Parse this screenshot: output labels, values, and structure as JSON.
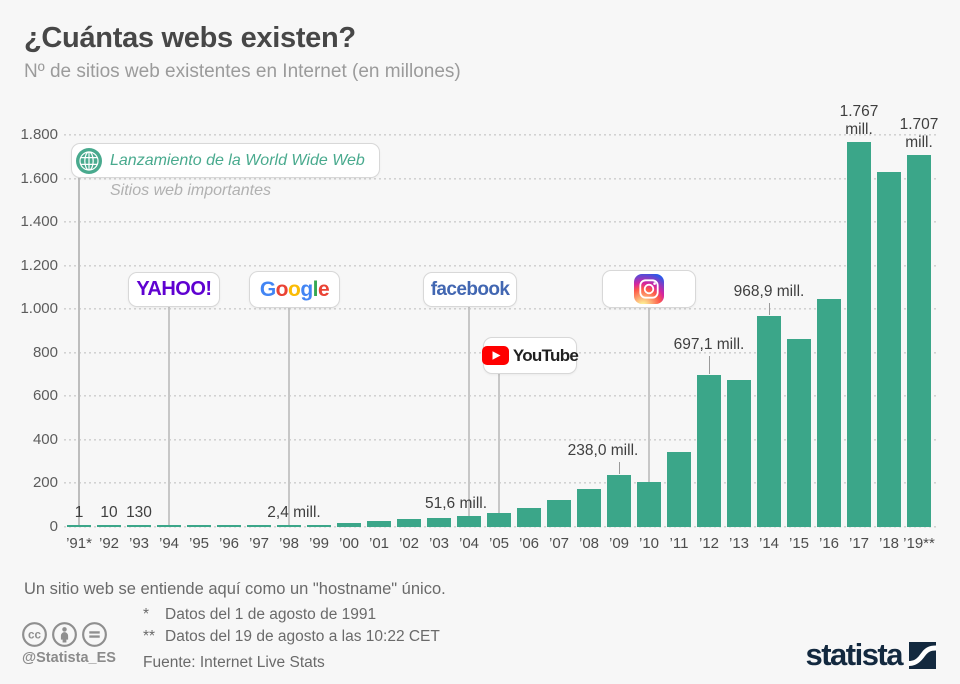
{
  "colors": {
    "background": "#f7f7f7",
    "bar": "#3ba689",
    "accent_teal": "#49aa8e",
    "yahoo_purple": "#5f01d1",
    "facebook_blue": "#4267b2",
    "youtube_red": "#ff0000",
    "brand_navy": "#13293f",
    "google_letters": [
      "#4285F4",
      "#EA4335",
      "#FBBC05",
      "#4285F4",
      "#34A853",
      "#EA4335"
    ]
  },
  "annotations": {
    "www_launch": "Lanzamiento de la World Wide Web",
    "www_icon": "globe-icon",
    "important_sites": "Sitios web importantes",
    "logos": [
      {
        "name": "yahoo",
        "label": "YAHOO!",
        "year": "’94"
      },
      {
        "name": "google",
        "label": "Google",
        "year": "’98"
      },
      {
        "name": "facebook",
        "label": "facebook",
        "year": "’04"
      },
      {
        "name": "youtube",
        "label": "YouTube",
        "year": "’05",
        "icon": "youtube-play-icon"
      },
      {
        "name": "instagram",
        "label": "",
        "year": "’10",
        "icon": "instagram-icon"
      }
    ]
  },
  "chart_data": {
    "type": "bar",
    "title": "¿Cuántas webs existen?",
    "subtitle": "Nº de sitios web existentes en Internet (en millones)",
    "xlabel": "",
    "ylabel": "",
    "ylim": [
      0,
      1800
    ],
    "grid": "dotted-horizontal",
    "legend": "none",
    "categories": [
      "’91*",
      "’92",
      "’93",
      "’94",
      "’95",
      "’96",
      "’97",
      "’98",
      "’99",
      "’00",
      "’01",
      "’02",
      "’03",
      "’04",
      "’05",
      "’06",
      "’07",
      "’08",
      "’09",
      "’10",
      "’11",
      "’12",
      "’13",
      "’14",
      "’15",
      "’16",
      "’17",
      "’18",
      "’19**"
    ],
    "values": [
      1e-06,
      1e-05,
      0.00013,
      0.003,
      0.023,
      0.26,
      1.1,
      2.4,
      3.2,
      17.1,
      29.3,
      38.8,
      40.9,
      51.6,
      64.8,
      85.5,
      121.9,
      172.3,
      238.0,
      207.0,
      346.0,
      697.1,
      673.0,
      968.9,
      863.1,
      1045.5,
      1766.9,
      1630.3,
      1707.0
    ],
    "ytick_labels": [
      "0",
      "200",
      "400",
      "600",
      "800",
      "1.000",
      "1.200",
      "1.400",
      "1.600",
      "1.800"
    ],
    "value_labels": [
      {
        "year_index": 0,
        "text": "1",
        "tick": 0,
        "dx": 0
      },
      {
        "year_index": 1,
        "text": "10",
        "tick": 0,
        "dx": 0
      },
      {
        "year_index": 2,
        "text": "130",
        "tick": 0,
        "dx": 0
      },
      {
        "year_index": 7,
        "text": "2,4 mill.",
        "tick": 0,
        "dx": 5
      },
      {
        "year_index": 13,
        "text": "51,6 mill.",
        "tick": 0,
        "dx": -13
      },
      {
        "year_index": 18,
        "text": "238,0 mill.",
        "tick": 12,
        "dx": -16
      },
      {
        "year_index": 21,
        "text": "697,1 mill.",
        "tick": 18,
        "dx": 0
      },
      {
        "year_index": 23,
        "text": "968,9 mill.",
        "tick": 12,
        "dx": 0
      },
      {
        "year_index": 26,
        "text": "1.767\nmill.",
        "tick": 0,
        "dx": 0
      },
      {
        "year_index": 28,
        "text": "1.707\nmill.",
        "tick": 0,
        "dx": 0
      }
    ]
  },
  "footer": {
    "definition": "Un sitio web se entiende aquí como un \"hostname\" único.",
    "note1_marker": "*",
    "note1": "Datos del 1 de agosto de 1991",
    "note2_marker": "**",
    "note2": "Datos del 19 de agosto a las 10:22 CET",
    "source": "Fuente: Internet Live Stats",
    "cc_icons": [
      "cc-icon",
      "cc-attribution-icon",
      "cc-no-derivatives-icon"
    ],
    "cc_handle": "@Statista_ES",
    "brand": "statista"
  }
}
